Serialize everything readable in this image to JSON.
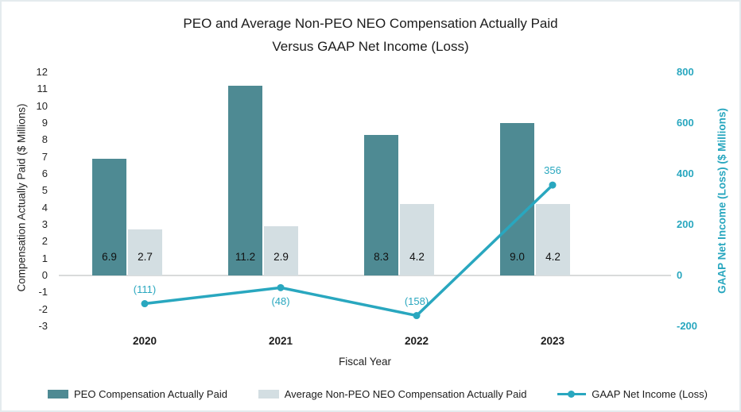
{
  "title": {
    "line1": "PEO and Average Non-PEO NEO Compensation Actually Paid",
    "line2": "Versus GAAP Net Income (Loss)"
  },
  "colors": {
    "peo_bar": "#4E8A93",
    "non_peo_bar": "#D3DEE2",
    "line": "#29A7BF",
    "gridline": "#D9DBDB",
    "frame_border": "#E4EBEE",
    "text": "#1F1F1F"
  },
  "chart_data": {
    "type": "bar+line",
    "categories": [
      "2020",
      "2021",
      "2022",
      "2023"
    ],
    "series": [
      {
        "name": "PEO Compensation Actually Paid",
        "type": "bar",
        "axis": "left",
        "color_key": "peo_bar",
        "values": [
          6.9,
          11.2,
          8.3,
          9.0
        ],
        "value_labels": [
          "6.9",
          "11.2",
          "8.3",
          "9.0"
        ]
      },
      {
        "name": "Average Non-PEO NEO Compensation Actually Paid",
        "type": "bar",
        "axis": "left",
        "color_key": "non_peo_bar",
        "values": [
          2.7,
          2.9,
          4.2,
          4.2
        ],
        "value_labels": [
          "2.7",
          "2.9",
          "4.2",
          "4.2"
        ]
      },
      {
        "name": "GAAP Net Income (Loss)",
        "type": "line",
        "axis": "right",
        "color_key": "line",
        "values": [
          -111,
          -48,
          -158,
          356
        ],
        "value_labels": [
          "(111)",
          "(48)",
          "(158)",
          "356"
        ],
        "label_positions": [
          "above",
          "below",
          "above",
          "above"
        ]
      }
    ],
    "xlabel": "Fiscal Year",
    "left_axis": {
      "title": "Compensation Actually Paid ($ Millions)",
      "min": -3,
      "max": 12,
      "ticks": [
        "12",
        "11",
        "10",
        "9",
        "8",
        "7",
        "6",
        "5",
        "4",
        "3",
        "2",
        "1",
        "0",
        "-1",
        "-2",
        "-3"
      ]
    },
    "right_axis": {
      "title": "GAAP Net Income (Loss) ($ Millions)",
      "min": -200,
      "max": 800,
      "ticks": [
        "800",
        "600",
        "400",
        "200",
        "0",
        "-200"
      ]
    },
    "grid": "zero line only",
    "legend_position": "bottom"
  },
  "legend": {
    "items": [
      {
        "label": "PEO Compensation Actually Paid",
        "glyph": "bar-swatch",
        "color_key": "peo_bar"
      },
      {
        "label": "Average Non-PEO NEO Compensation Actually Paid",
        "glyph": "bar-swatch",
        "color_key": "non_peo_bar"
      },
      {
        "label": "GAAP Net Income (Loss)",
        "glyph": "line-marker",
        "color_key": "line"
      }
    ]
  }
}
